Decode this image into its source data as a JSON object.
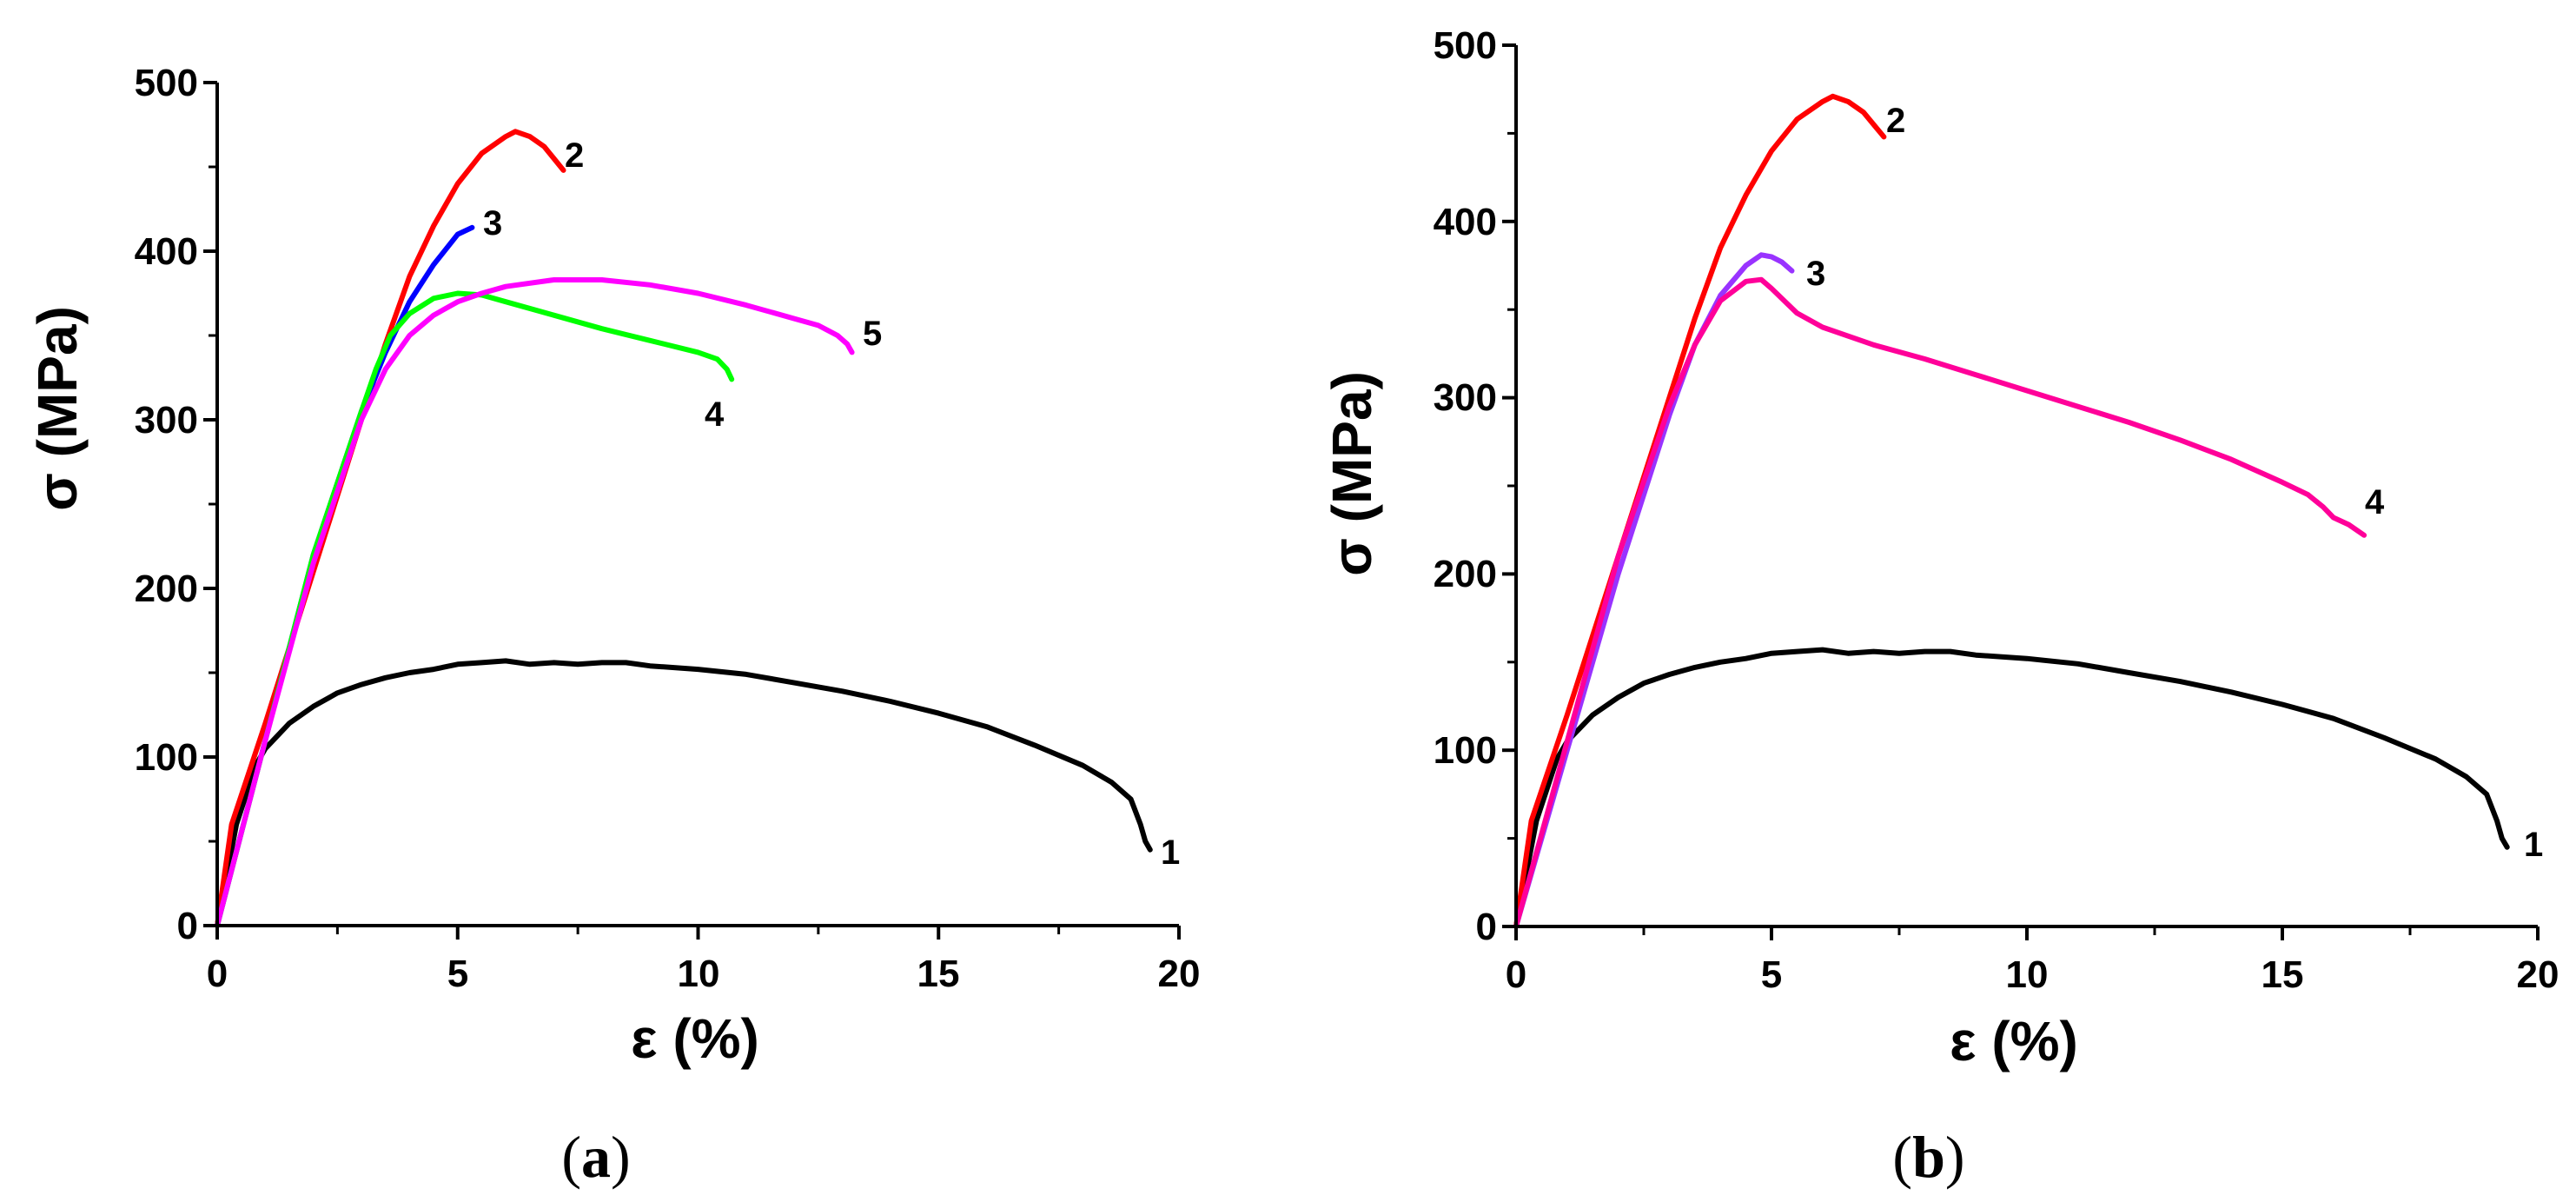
{
  "chart_data": [
    {
      "type": "line",
      "panel_label": "a",
      "xlabel": "ε (%)",
      "ylabel": "σ (MPa)",
      "xlim": [
        0,
        20
      ],
      "ylim": [
        0,
        500
      ],
      "xticks": [
        0,
        5,
        10,
        15,
        20
      ],
      "yticks": [
        0,
        100,
        200,
        300,
        400,
        500
      ],
      "series": [
        {
          "name": "1",
          "color": "#000000",
          "x": [
            0,
            0.4,
            0.8,
            1.0,
            1.5,
            2.0,
            2.5,
            3.0,
            3.5,
            4.0,
            4.5,
            5.0,
            5.5,
            6.0,
            6.5,
            7.0,
            7.5,
            8.0,
            8.5,
            9.0,
            10.0,
            11.0,
            12.0,
            13.0,
            14.0,
            15.0,
            16.0,
            17.0,
            18.0,
            18.6,
            19.0,
            19.2,
            19.3,
            19.4
          ],
          "y": [
            0,
            60,
            95,
            105,
            120,
            130,
            138,
            143,
            147,
            150,
            152,
            155,
            156,
            157,
            155,
            156,
            155,
            156,
            156,
            154,
            152,
            149,
            144,
            139,
            133,
            126,
            118,
            107,
            95,
            85,
            75,
            60,
            50,
            45
          ]
        },
        {
          "name": "2",
          "color": "#ff0000",
          "x": [
            0,
            0.3,
            1.0,
            2.0,
            3.0,
            3.5,
            4.0,
            4.5,
            5.0,
            5.5,
            6.0,
            6.2,
            6.5,
            6.8,
            7.0,
            7.2
          ],
          "y": [
            0,
            60,
            120,
            210,
            300,
            345,
            385,
            415,
            440,
            458,
            468,
            471,
            468,
            462,
            455,
            448
          ]
        },
        {
          "name": "3",
          "color": "#0000ff",
          "x": [
            0,
            1.0,
            2.0,
            3.0,
            3.5,
            4.0,
            4.5,
            5.0,
            5.3
          ],
          "y": [
            0,
            110,
            220,
            305,
            340,
            370,
            392,
            410,
            414
          ]
        },
        {
          "name": "4",
          "color": "#00ff00",
          "x": [
            0,
            1.0,
            2.0,
            3.0,
            3.3,
            3.6,
            4.0,
            4.5,
            5.0,
            5.5,
            6.0,
            7.0,
            8.0,
            9.0,
            10.0,
            10.4,
            10.6,
            10.7
          ],
          "y": [
            0,
            110,
            220,
            305,
            330,
            350,
            363,
            372,
            375,
            374,
            370,
            362,
            354,
            347,
            340,
            336,
            330,
            324
          ]
        },
        {
          "name": "5",
          "color": "#ff00ff",
          "x": [
            0,
            1.0,
            2.0,
            3.0,
            3.5,
            4.0,
            4.5,
            5.0,
            5.5,
            6.0,
            7.0,
            8.0,
            9.0,
            10.0,
            11.0,
            12.0,
            12.5,
            12.9,
            13.1,
            13.2
          ],
          "y": [
            0,
            110,
            215,
            300,
            330,
            350,
            362,
            370,
            375,
            379,
            383,
            383,
            380,
            375,
            368,
            360,
            356,
            350,
            345,
            340
          ]
        }
      ]
    },
    {
      "type": "line",
      "panel_label": "b",
      "xlabel": "ε (%)",
      "ylabel": "σ (MPa)",
      "xlim": [
        0,
        20
      ],
      "ylim": [
        0,
        500
      ],
      "xticks": [
        0,
        5,
        10,
        15,
        20
      ],
      "yticks": [
        0,
        100,
        200,
        300,
        400,
        500
      ],
      "series": [
        {
          "name": "1",
          "color": "#000000",
          "x": [
            0,
            0.4,
            0.8,
            1.0,
            1.5,
            2.0,
            2.5,
            3.0,
            3.5,
            4.0,
            4.5,
            5.0,
            5.5,
            6.0,
            6.5,
            7.0,
            7.5,
            8.0,
            8.5,
            9.0,
            10.0,
            11.0,
            12.0,
            13.0,
            14.0,
            15.0,
            16.0,
            17.0,
            18.0,
            18.6,
            19.0,
            19.2,
            19.3,
            19.4
          ],
          "y": [
            0,
            60,
            95,
            105,
            120,
            130,
            138,
            143,
            147,
            150,
            152,
            155,
            156,
            157,
            155,
            156,
            155,
            156,
            156,
            154,
            152,
            149,
            144,
            139,
            133,
            126,
            118,
            107,
            95,
            85,
            75,
            60,
            50,
            45
          ]
        },
        {
          "name": "2",
          "color": "#ff0000",
          "x": [
            0,
            0.3,
            1.0,
            2.0,
            3.0,
            3.5,
            4.0,
            4.5,
            5.0,
            5.5,
            6.0,
            6.2,
            6.5,
            6.8,
            7.0,
            7.2
          ],
          "y": [
            0,
            60,
            120,
            210,
            300,
            345,
            385,
            415,
            440,
            458,
            468,
            471,
            468,
            462,
            455,
            448
          ]
        },
        {
          "name": "3",
          "color": "#9933ff",
          "x": [
            0,
            1.0,
            2.0,
            3.0,
            3.5,
            4.0,
            4.5,
            4.8,
            5.0,
            5.2,
            5.4
          ],
          "y": [
            0,
            100,
            200,
            290,
            330,
            358,
            375,
            381,
            380,
            377,
            372
          ]
        },
        {
          "name": "4",
          "color": "#ff0099",
          "x": [
            0,
            1.0,
            2.0,
            3.0,
            3.5,
            4.0,
            4.5,
            4.8,
            5.0,
            5.5,
            6.0,
            7.0,
            8.0,
            9.0,
            10.0,
            11.0,
            12.0,
            13.0,
            14.0,
            15.0,
            15.5,
            15.8,
            16.0,
            16.3,
            16.6
          ],
          "y": [
            0,
            105,
            210,
            295,
            330,
            355,
            366,
            367,
            362,
            348,
            340,
            330,
            322,
            313,
            304,
            295,
            286,
            276,
            265,
            252,
            245,
            238,
            232,
            228,
            222
          ]
        }
      ]
    }
  ]
}
